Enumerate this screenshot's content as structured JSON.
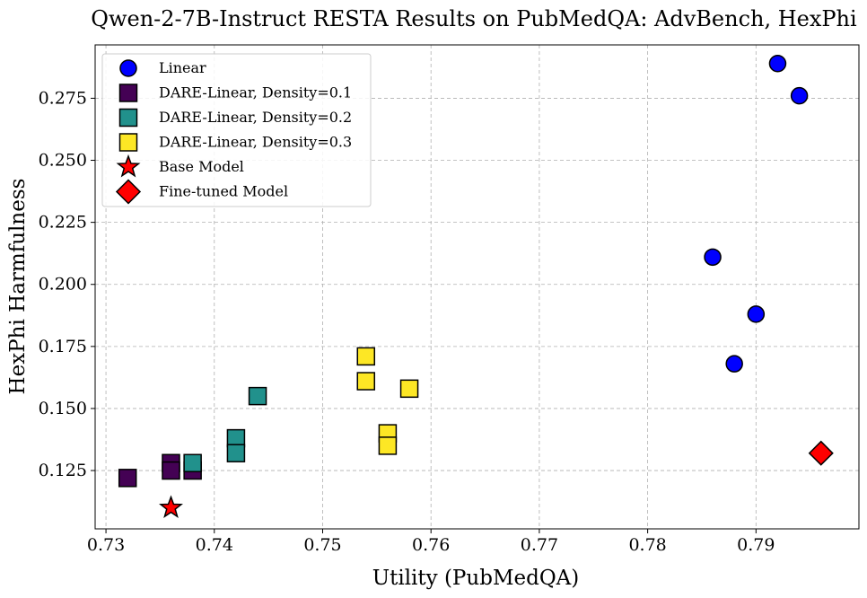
{
  "chart_data": {
    "type": "scatter",
    "title": "Qwen-2-7B-Instruct RESTA Results on PubMedQA: AdvBench, HexPhi",
    "xlabel": "Utility (PubMedQA)",
    "ylabel": "HexPhi Harmfulness",
    "xlim": [
      0.729,
      0.7995
    ],
    "ylim": [
      0.1015,
      0.2965
    ],
    "xticks": [
      0.73,
      0.74,
      0.75,
      0.76,
      0.77,
      0.78,
      0.79
    ],
    "xtick_labels": [
      "0.73",
      "0.74",
      "0.75",
      "0.76",
      "0.77",
      "0.78",
      "0.79"
    ],
    "yticks": [
      0.125,
      0.15,
      0.175,
      0.2,
      0.225,
      0.25,
      0.275
    ],
    "ytick_labels": [
      "0.125",
      "0.150",
      "0.175",
      "0.200",
      "0.225",
      "0.250",
      "0.275"
    ],
    "grid": true,
    "legend_position": "top-left",
    "series": [
      {
        "name": "Linear",
        "marker": "circle",
        "color": "#0000ff",
        "points": [
          [
            0.792,
            0.289
          ],
          [
            0.794,
            0.276
          ],
          [
            0.786,
            0.211
          ],
          [
            0.79,
            0.188
          ],
          [
            0.788,
            0.168
          ]
        ]
      },
      {
        "name": "DARE-Linear, Density=0.1",
        "marker": "square",
        "color": "#440154",
        "points": [
          [
            0.732,
            0.122
          ],
          [
            0.736,
            0.128
          ],
          [
            0.736,
            0.125
          ],
          [
            0.738,
            0.125
          ]
        ]
      },
      {
        "name": "DARE-Linear, Density=0.2",
        "marker": "square",
        "color": "#21918c",
        "points": [
          [
            0.738,
            0.128
          ],
          [
            0.742,
            0.138
          ],
          [
            0.742,
            0.132
          ],
          [
            0.744,
            0.155
          ]
        ]
      },
      {
        "name": "DARE-Linear, Density=0.3",
        "marker": "square",
        "color": "#fde725",
        "points": [
          [
            0.754,
            0.171
          ],
          [
            0.754,
            0.161
          ],
          [
            0.758,
            0.158
          ],
          [
            0.756,
            0.14
          ],
          [
            0.756,
            0.135
          ]
        ]
      },
      {
        "name": "Base Model",
        "marker": "star",
        "color": "#ff0000",
        "points": [
          [
            0.736,
            0.11
          ]
        ]
      },
      {
        "name": "Fine-tuned Model",
        "marker": "diamond",
        "color": "#ff0000",
        "points": [
          [
            0.796,
            0.132
          ]
        ]
      }
    ]
  }
}
